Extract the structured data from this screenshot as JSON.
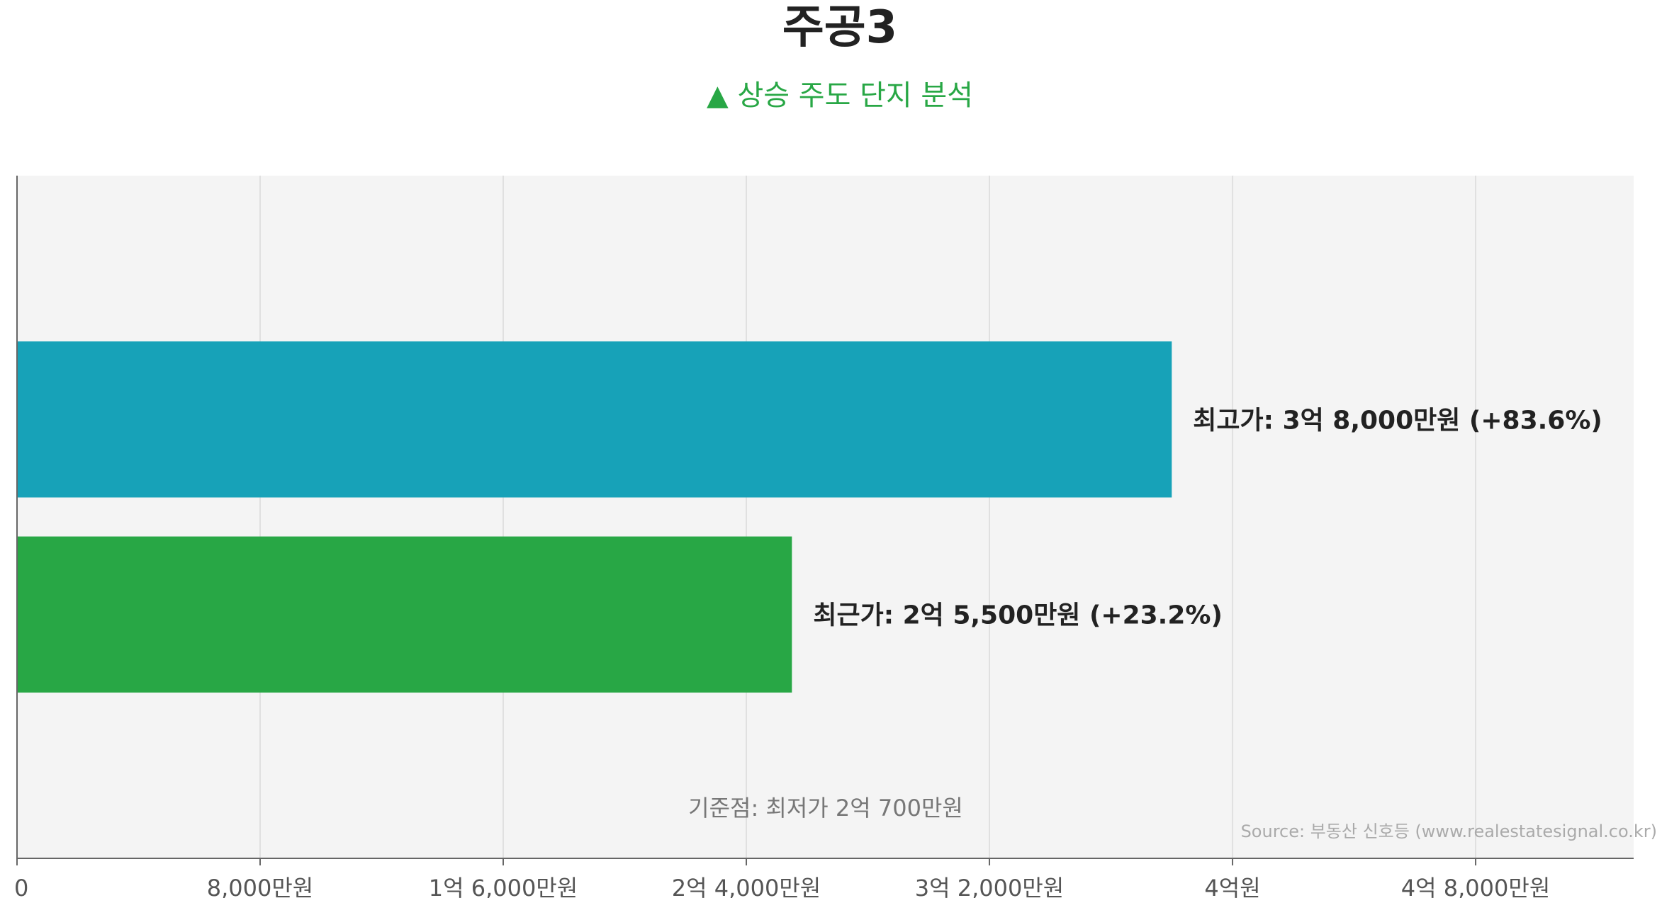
{
  "chart_data": {
    "type": "bar",
    "orientation": "horizontal",
    "title": "주공3",
    "subtitle": "▲ 상승 주도 단지 분석",
    "categories": [
      "최고가",
      "최근가"
    ],
    "values": [
      38000,
      25500
    ],
    "labels": [
      "최고가: 3억 8,000만원 (+83.6%)",
      "최근가: 2억 5,500만원 (+23.2%)"
    ],
    "colors": [
      "#17a2b8",
      "#28a745"
    ],
    "xlim": [
      0,
      53200
    ],
    "xticks": [
      0,
      8000,
      16000,
      24000,
      32000,
      40000,
      48000
    ],
    "xtick_labels": [
      "0",
      "8,000만원",
      "1억 6,000만원",
      "2억 4,000만원",
      "3억 2,000만원",
      "4억원",
      "4억 8,000만원"
    ],
    "grid": true,
    "note": "기준점: 최저가 2억 700만원",
    "source": "Source: 부동산 신호등 (www.realestatesignal.co.kr)"
  }
}
